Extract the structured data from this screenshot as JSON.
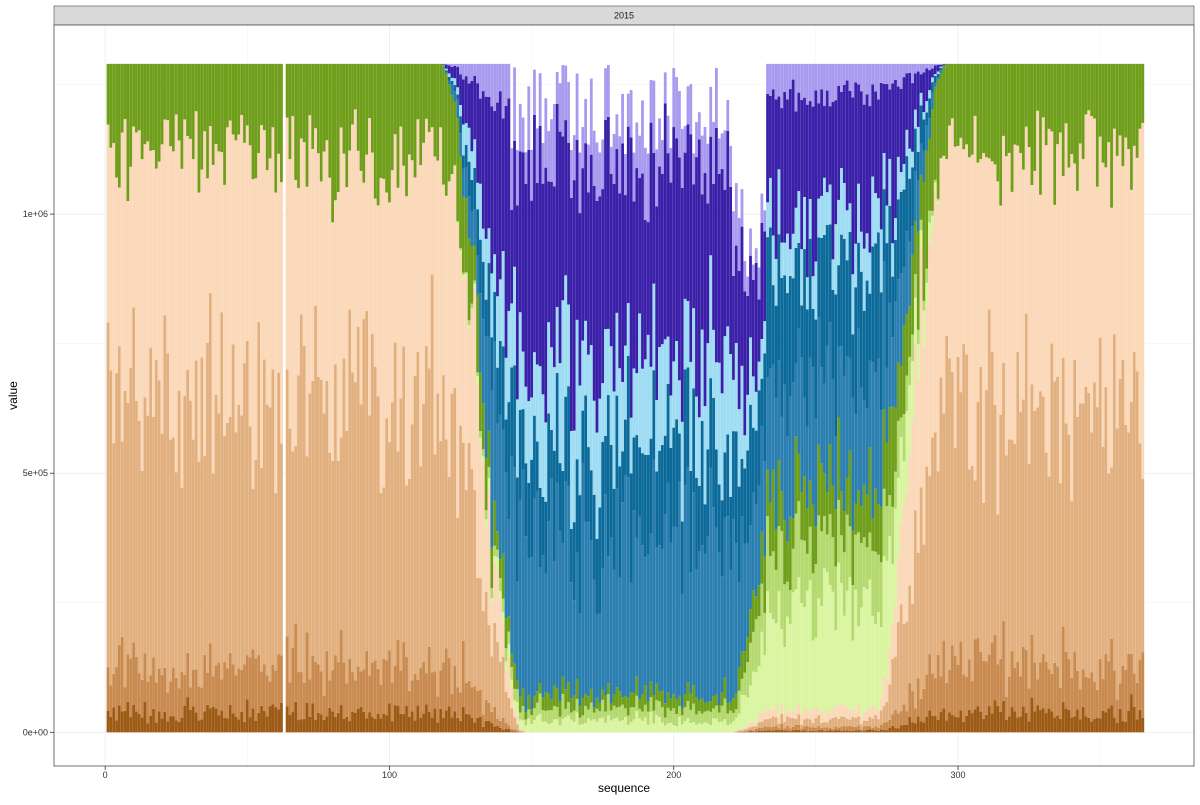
{
  "chart_data": {
    "type": "bar",
    "stacked": true,
    "facet_label": "2015",
    "xlabel": "sequence",
    "ylabel": "value",
    "xlim": [
      -18,
      383
    ],
    "ylim": [
      -65000,
      1365000
    ],
    "x_ticks": [
      0,
      100,
      200,
      300
    ],
    "x_tick_labels": [
      "0",
      "100",
      "200",
      "300"
    ],
    "y_ticks": [
      0,
      500000,
      1000000
    ],
    "y_tick_labels": [
      "0e+00",
      "5e+05",
      "1e+06"
    ],
    "grid": true,
    "legend": "none",
    "total": 1290000,
    "missing_x": [
      63
    ],
    "x": {
      "start": 1,
      "end": 365
    },
    "layer_colors": [
      "#9C5A14",
      "#C88A4E",
      "#E2B07F",
      "#FAD8B8",
      "#D9F5A0",
      "#B4D96E",
      "#6E9E1A",
      "#2B7FB0",
      "#0C6A9A",
      "#9EDCF4",
      "#3A1FA8",
      "#A89BEF"
    ],
    "dominant_layers_by_x": [
      {
        "x": [
          1,
          62
        ],
        "layers": "brown, tan, peach, olive green"
      },
      {
        "x": [
          64,
          130
        ],
        "layers": "brown, tan, peach, olive green"
      },
      {
        "x": [
          131,
          220
        ],
        "layers": "light green, blues, indigo, lavender"
      },
      {
        "x": [
          221,
          292
        ],
        "layers": "greens, blues, indigo"
      },
      {
        "x": [
          293,
          365
        ],
        "layers": "brown, tan, peach, olive green"
      }
    ]
  }
}
